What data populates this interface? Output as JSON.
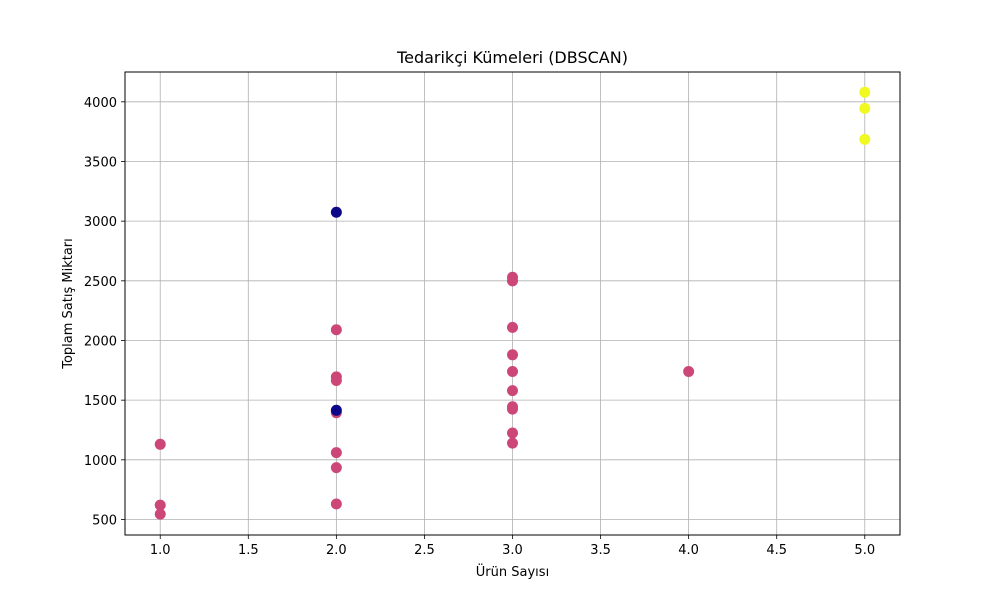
{
  "chart_data": {
    "type": "scatter",
    "title": "Tedarikçi Kümeleri (DBSCAN)",
    "xlabel": "Ürün Sayısı",
    "ylabel": "Toplam Satış Miktarı",
    "xlim": [
      0.8,
      5.2
    ],
    "ylim": [
      370,
      4250
    ],
    "xticks": [
      1.0,
      1.5,
      2.0,
      2.5,
      3.0,
      3.5,
      4.0,
      4.5,
      5.0
    ],
    "xtick_labels": [
      "1.0",
      "1.5",
      "2.0",
      "2.5",
      "3.0",
      "3.5",
      "4.0",
      "4.5",
      "5.0"
    ],
    "yticks": [
      500,
      1000,
      1500,
      2000,
      2500,
      3000,
      3500,
      4000
    ],
    "ytick_labels": [
      "500",
      "1000",
      "1500",
      "2000",
      "2500",
      "3000",
      "3500",
      "4000"
    ],
    "grid": true,
    "legend": "none",
    "colors": {
      "noise": "#0d0887",
      "cluster-0": "#cc4778",
      "cluster-1": "#f0f921"
    },
    "points": [
      {
        "x": 1,
        "y": 1130,
        "cluster": "cluster-0"
      },
      {
        "x": 1,
        "y": 620,
        "cluster": "cluster-0"
      },
      {
        "x": 1,
        "y": 545,
        "cluster": "cluster-0"
      },
      {
        "x": 2,
        "y": 2090,
        "cluster": "cluster-0"
      },
      {
        "x": 2,
        "y": 1695,
        "cluster": "cluster-0"
      },
      {
        "x": 2,
        "y": 1665,
        "cluster": "cluster-0"
      },
      {
        "x": 2,
        "y": 1395,
        "cluster": "cluster-0"
      },
      {
        "x": 2,
        "y": 1060,
        "cluster": "cluster-0"
      },
      {
        "x": 2,
        "y": 935,
        "cluster": "cluster-0"
      },
      {
        "x": 2,
        "y": 630,
        "cluster": "cluster-0"
      },
      {
        "x": 3,
        "y": 2530,
        "cluster": "cluster-0"
      },
      {
        "x": 3,
        "y": 2500,
        "cluster": "cluster-0"
      },
      {
        "x": 3,
        "y": 2110,
        "cluster": "cluster-0"
      },
      {
        "x": 3,
        "y": 1880,
        "cluster": "cluster-0"
      },
      {
        "x": 3,
        "y": 1740,
        "cluster": "cluster-0"
      },
      {
        "x": 3,
        "y": 1580,
        "cluster": "cluster-0"
      },
      {
        "x": 3,
        "y": 1445,
        "cluster": "cluster-0"
      },
      {
        "x": 3,
        "y": 1425,
        "cluster": "cluster-0"
      },
      {
        "x": 3,
        "y": 1225,
        "cluster": "cluster-0"
      },
      {
        "x": 3,
        "y": 1140,
        "cluster": "cluster-0"
      },
      {
        "x": 4,
        "y": 1740,
        "cluster": "cluster-0"
      },
      {
        "x": 2,
        "y": 3075,
        "cluster": "noise"
      },
      {
        "x": 2,
        "y": 1415,
        "cluster": "noise"
      },
      {
        "x": 5,
        "y": 4080,
        "cluster": "cluster-1"
      },
      {
        "x": 5,
        "y": 3945,
        "cluster": "cluster-1"
      },
      {
        "x": 5,
        "y": 3685,
        "cluster": "cluster-1"
      }
    ]
  }
}
